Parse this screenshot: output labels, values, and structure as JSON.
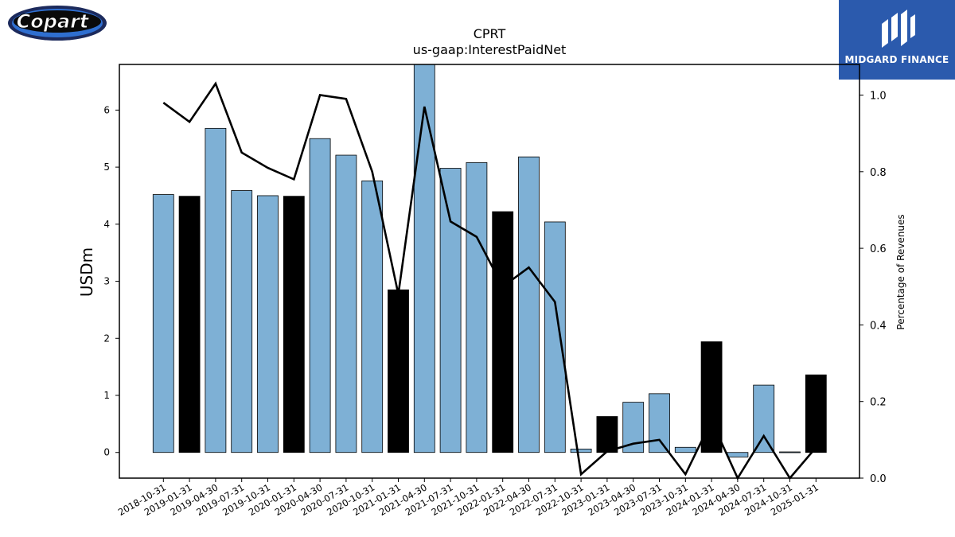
{
  "logos": {
    "left_brand": "Copart",
    "right_brand": "MIDGARD FINANCE"
  },
  "chart_data": {
    "type": "bar",
    "title": "CPRT",
    "subtitle": "us-gaap:InterestPaidNet",
    "ylabel": "USDm",
    "y2label": "Percentage of Revenues",
    "ylim": [
      -0.45,
      6.8
    ],
    "y2lim": [
      0.0,
      1.08
    ],
    "yticks": [
      "0",
      "1",
      "2",
      "3",
      "4",
      "5",
      "6"
    ],
    "y2ticks": [
      "0.0",
      "0.2",
      "0.4",
      "0.6",
      "0.8",
      "1.0"
    ],
    "bar_color": "#7eb0d5",
    "highlight_color": "#000000",
    "line_color": "#000000",
    "categories": [
      "2018-10-31",
      "2019-01-31",
      "2019-04-30",
      "2019-07-31",
      "2019-10-31",
      "2020-01-31",
      "2020-04-30",
      "2020-07-31",
      "2020-10-31",
      "2021-01-31",
      "2021-04-30",
      "2021-07-31",
      "2021-10-31",
      "2022-01-31",
      "2022-04-30",
      "2022-07-31",
      "2022-10-31",
      "2023-01-31",
      "2023-04-30",
      "2023-07-31",
      "2023-10-31",
      "2024-01-31",
      "2024-04-30",
      "2024-07-31",
      "2024-10-31",
      "2025-01-31"
    ],
    "series": [
      {
        "type": "bar",
        "values": [
          4.52,
          4.49,
          5.68,
          4.59,
          4.5,
          4.49,
          5.5,
          5.21,
          4.76,
          2.85,
          6.9,
          4.98,
          5.08,
          4.22,
          5.18,
          4.04,
          0.06,
          0.63,
          0.88,
          1.03,
          0.09,
          1.94,
          -0.08,
          1.18,
          0.01,
          1.36
        ],
        "highlight": [
          false,
          true,
          false,
          false,
          false,
          true,
          false,
          false,
          false,
          true,
          false,
          false,
          false,
          true,
          false,
          false,
          false,
          true,
          false,
          false,
          false,
          true,
          false,
          false,
          false,
          true
        ]
      },
      {
        "type": "line",
        "axis": "right",
        "values": [
          0.98,
          0.93,
          1.03,
          0.85,
          0.81,
          0.78,
          1.0,
          0.99,
          0.8,
          0.48,
          0.97,
          0.67,
          0.63,
          0.5,
          0.55,
          0.46,
          0.01,
          0.07,
          0.09,
          0.1,
          0.01,
          0.15,
          -0.02,
          0.11,
          0.0,
          0.08
        ]
      }
    ]
  }
}
